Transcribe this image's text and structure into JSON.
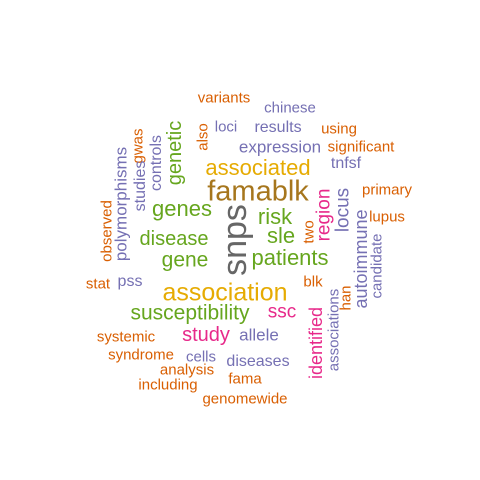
{
  "word_cloud": {
    "colors": {
      "green": "#66a61e",
      "gold": "#e6ab02",
      "brown": "#a6761d",
      "gray": "#666666",
      "orange": "#d95f02",
      "purple": "#7570b3",
      "magenta": "#e7298a"
    },
    "words": [
      {
        "text": "variants",
        "color": "#d95f02"
      },
      {
        "text": "chinese",
        "color": "#7570b3"
      },
      {
        "text": "gwas",
        "color": "#d95f02"
      },
      {
        "text": "also",
        "color": "#d95f02"
      },
      {
        "text": "loci",
        "color": "#7570b3"
      },
      {
        "text": "results",
        "color": "#7570b3"
      },
      {
        "text": "using",
        "color": "#d95f02"
      },
      {
        "text": "significant",
        "color": "#d95f02"
      },
      {
        "text": "polymorphisms",
        "color": "#7570b3"
      },
      {
        "text": "studies",
        "color": "#7570b3"
      },
      {
        "text": "controls",
        "color": "#7570b3"
      },
      {
        "text": "genetic",
        "color": "#66a61e"
      },
      {
        "text": "expression",
        "color": "#7570b3"
      },
      {
        "text": "associated",
        "color": "#e6ab02"
      },
      {
        "text": "tnfsf",
        "color": "#7570b3"
      },
      {
        "text": "famablk",
        "color": "#a6761d"
      },
      {
        "text": "primary",
        "color": "#d95f02"
      },
      {
        "text": "observed",
        "color": "#d95f02"
      },
      {
        "text": "genes",
        "color": "#66a61e"
      },
      {
        "text": "snps",
        "color": "#666666"
      },
      {
        "text": "risk",
        "color": "#66a61e"
      },
      {
        "text": "region",
        "color": "#e7298a"
      },
      {
        "text": "locus",
        "color": "#7570b3"
      },
      {
        "text": "lupus",
        "color": "#d95f02"
      },
      {
        "text": "two",
        "color": "#d95f02"
      },
      {
        "text": "disease",
        "color": "#66a61e"
      },
      {
        "text": "sle",
        "color": "#66a61e"
      },
      {
        "text": "autoimmune",
        "color": "#7570b3"
      },
      {
        "text": "candidate",
        "color": "#7570b3"
      },
      {
        "text": "gene",
        "color": "#66a61e"
      },
      {
        "text": "patients",
        "color": "#66a61e"
      },
      {
        "text": "stat",
        "color": "#d95f02"
      },
      {
        "text": "pss",
        "color": "#7570b3"
      },
      {
        "text": "association",
        "color": "#e6ab02"
      },
      {
        "text": "blk",
        "color": "#d95f02"
      },
      {
        "text": "han",
        "color": "#d95f02"
      },
      {
        "text": "susceptibility",
        "color": "#66a61e"
      },
      {
        "text": "ssc",
        "color": "#e7298a"
      },
      {
        "text": "identified",
        "color": "#e7298a"
      },
      {
        "text": "associations",
        "color": "#7570b3"
      },
      {
        "text": "systemic",
        "color": "#d95f02"
      },
      {
        "text": "study",
        "color": "#e7298a"
      },
      {
        "text": "allele",
        "color": "#7570b3"
      },
      {
        "text": "syndrome",
        "color": "#d95f02"
      },
      {
        "text": "cells",
        "color": "#7570b3"
      },
      {
        "text": "diseases",
        "color": "#7570b3"
      },
      {
        "text": "analysis",
        "color": "#d95f02"
      },
      {
        "text": "fama",
        "color": "#d95f02"
      },
      {
        "text": "including",
        "color": "#d95f02"
      },
      {
        "text": "genomewide",
        "color": "#d95f02"
      }
    ]
  }
}
